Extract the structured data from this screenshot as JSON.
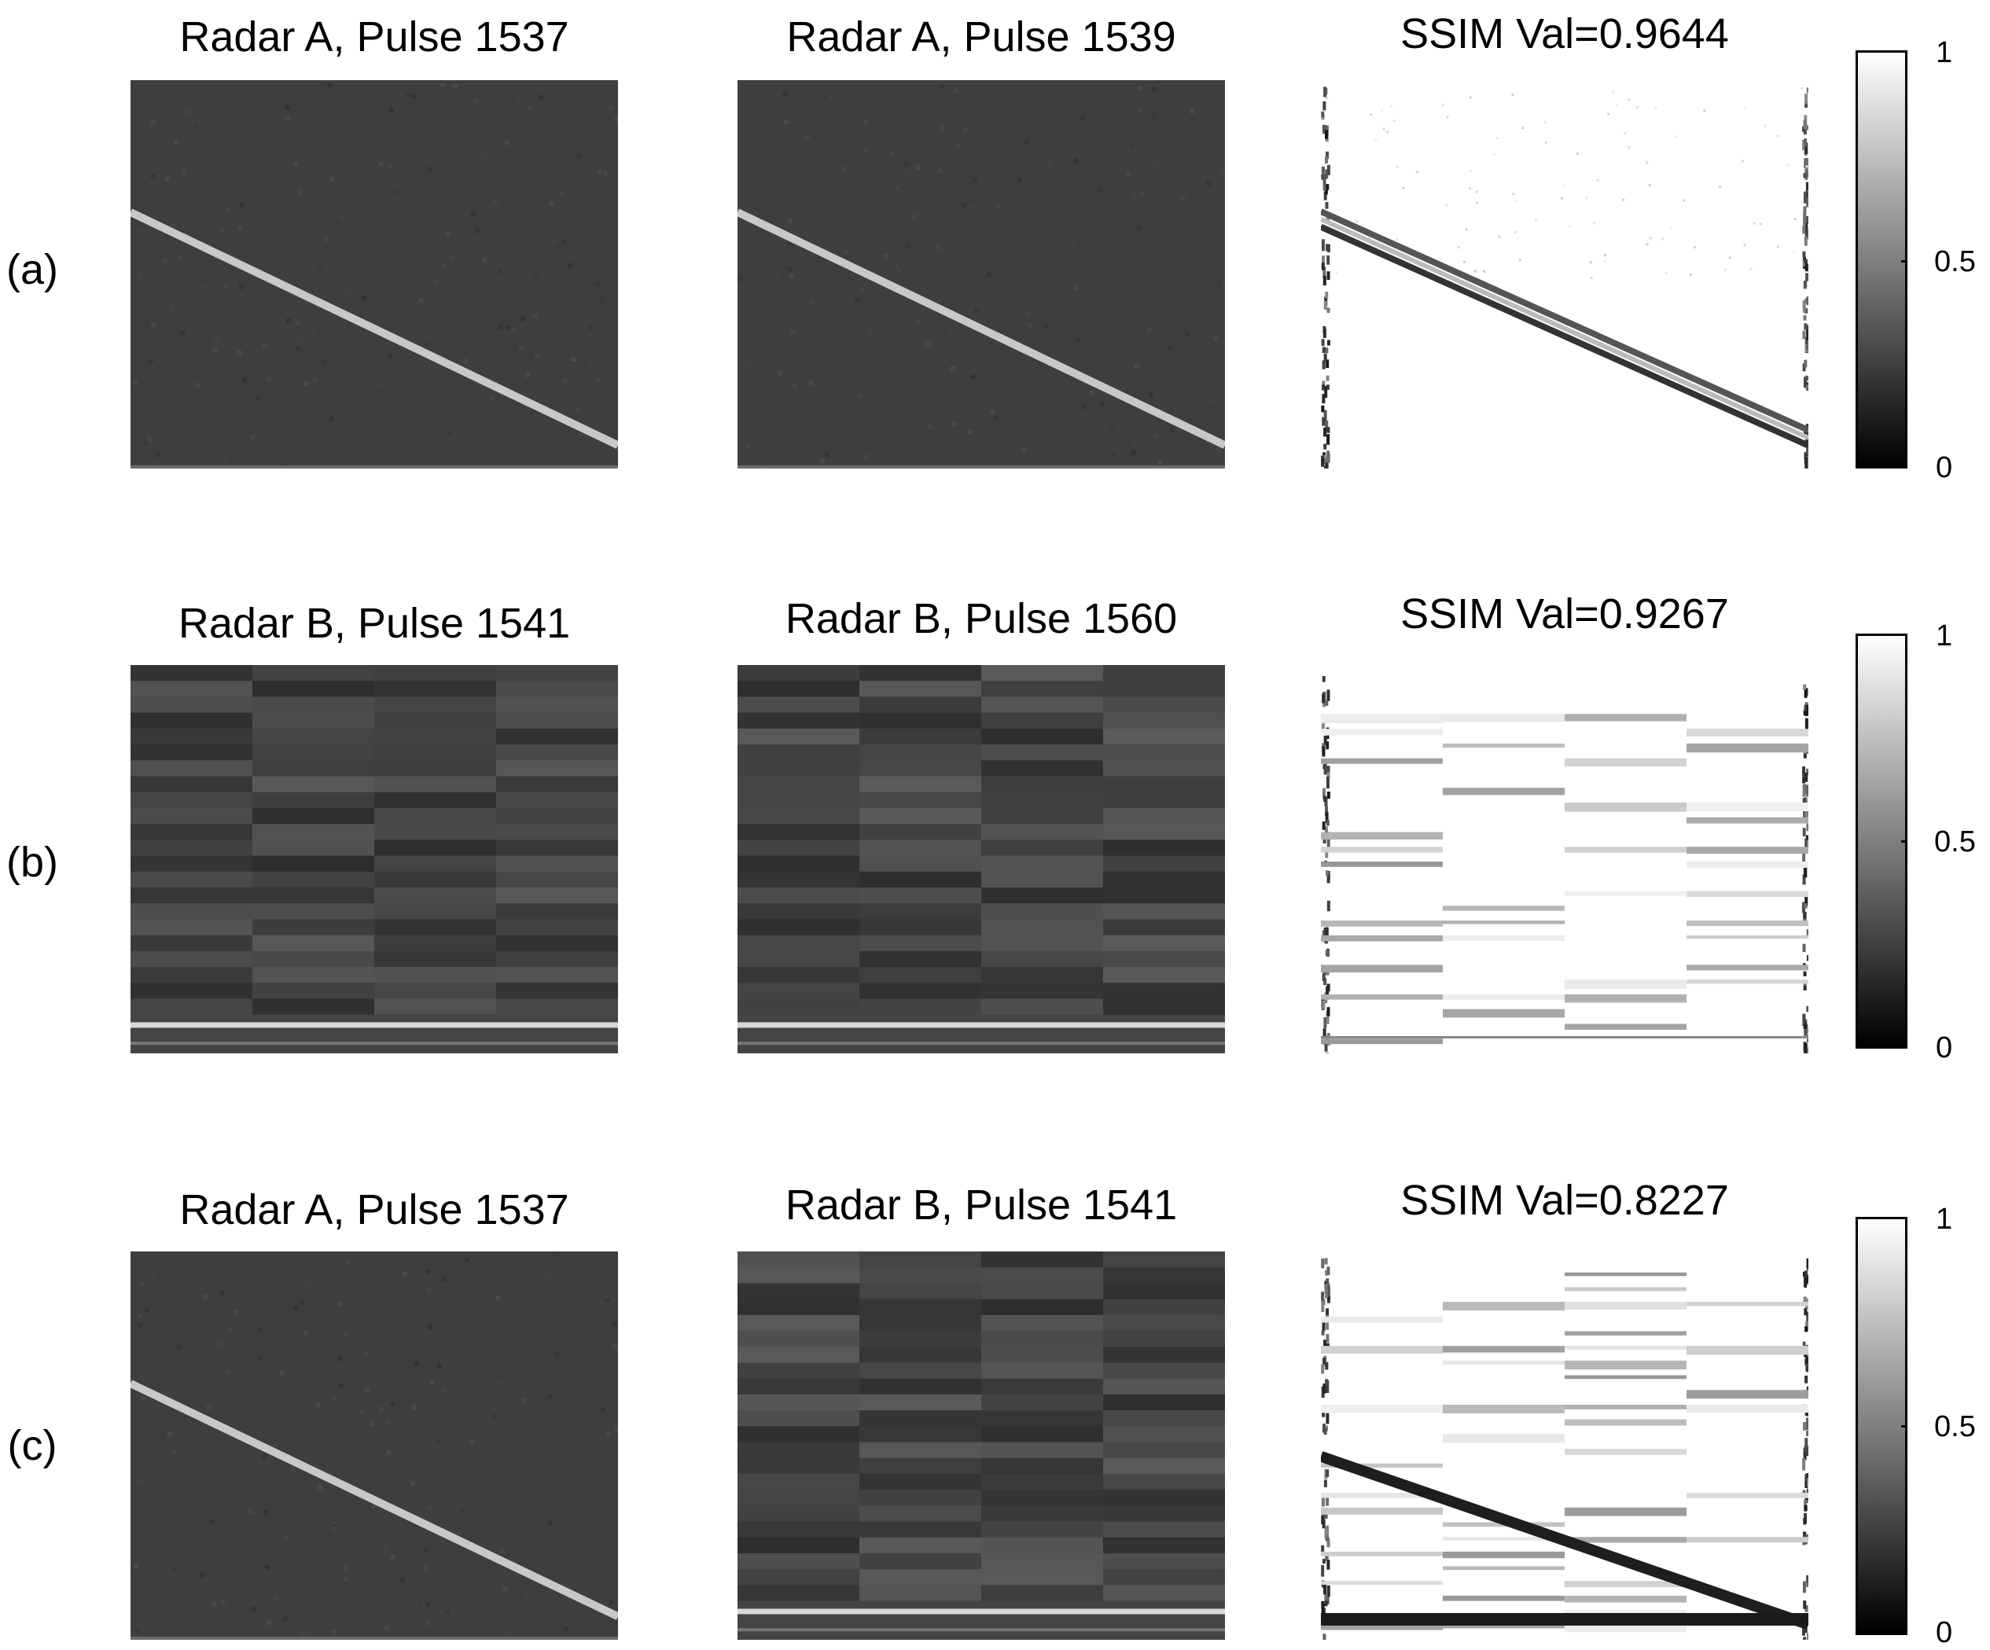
{
  "rows": [
    {
      "label": "(a)",
      "left_title": "Radar A, Pulse 1537",
      "mid_title": "Radar A, Pulse 1539",
      "ssim_title": "SSIM Val=0.9644",
      "left_pattern": "radar-a",
      "mid_pattern": "radar-a",
      "ssim_pattern": "ssim-a"
    },
    {
      "label": "(b)",
      "left_title": "Radar B, Pulse 1541",
      "mid_title": "Radar B, Pulse 1560",
      "ssim_title": "SSIM Val=0.9267",
      "left_pattern": "radar-b",
      "mid_pattern": "radar-b",
      "ssim_pattern": "ssim-b"
    },
    {
      "label": "(c)",
      "left_title": "Radar A, Pulse 1537",
      "mid_title": "Radar B, Pulse 1541",
      "ssim_title": "SSIM Val=0.8227",
      "left_pattern": "radar-a",
      "mid_pattern": "radar-b",
      "ssim_pattern": "ssim-c"
    }
  ],
  "colorbar": {
    "ticks": [
      "1",
      "0.5",
      "0"
    ],
    "colormap": "gray",
    "range": [
      0,
      1
    ]
  },
  "colors": {
    "panel_background": "#3d3d3d",
    "ssim_background": "#ffffff"
  }
}
